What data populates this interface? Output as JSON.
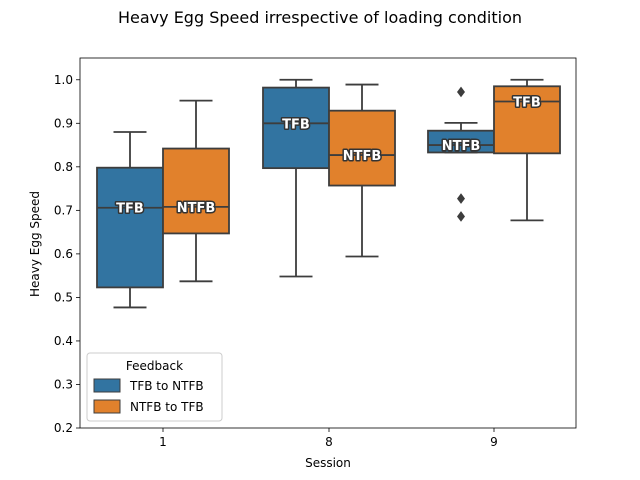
{
  "chart_data": {
    "type": "boxplot",
    "title": "Heavy Egg Speed irrespective of loading condition",
    "xlabel": "Session",
    "ylabel": "Heavy Egg Speed",
    "ylim": [
      0.2,
      1.05
    ],
    "yticks": [
      "0.2",
      "0.3",
      "0.4",
      "0.5",
      "0.6",
      "0.7",
      "0.8",
      "0.9",
      "1.0"
    ],
    "categories": [
      "1",
      "8",
      "9"
    ],
    "legend": {
      "title": "Feedback",
      "position": "lower-left"
    },
    "series": [
      {
        "name": "TFB to NTFB",
        "color": "#3274a1",
        "boxes": [
          {
            "category": "1",
            "whisker_low": 0.477,
            "q1": 0.523,
            "median": 0.706,
            "q3": 0.798,
            "whisker_high": 0.88,
            "outliers": [],
            "label": "TFB"
          },
          {
            "category": "8",
            "whisker_low": 0.548,
            "q1": 0.797,
            "median": 0.9,
            "q3": 0.982,
            "whisker_high": 1.0,
            "outliers": [],
            "label": "TFB"
          },
          {
            "category": "9",
            "whisker_low": 0.833,
            "q1": 0.833,
            "median": 0.85,
            "q3": 0.883,
            "whisker_high": 0.901,
            "outliers": [
              0.972,
              0.727,
              0.686
            ],
            "label": "NTFB"
          }
        ]
      },
      {
        "name": "NTFB to TFB",
        "color": "#e1812c",
        "boxes": [
          {
            "category": "1",
            "whisker_low": 0.537,
            "q1": 0.647,
            "median": 0.708,
            "q3": 0.842,
            "whisker_high": 0.952,
            "outliers": [],
            "label": "NTFB"
          },
          {
            "category": "8",
            "whisker_low": 0.594,
            "q1": 0.757,
            "median": 0.827,
            "q3": 0.929,
            "whisker_high": 0.989,
            "outliers": [],
            "label": "NTFB"
          },
          {
            "category": "9",
            "whisker_low": 0.677,
            "q1": 0.831,
            "median": 0.95,
            "q3": 0.985,
            "whisker_high": 1.0,
            "outliers": [],
            "label": "TFB"
          }
        ]
      }
    ]
  }
}
